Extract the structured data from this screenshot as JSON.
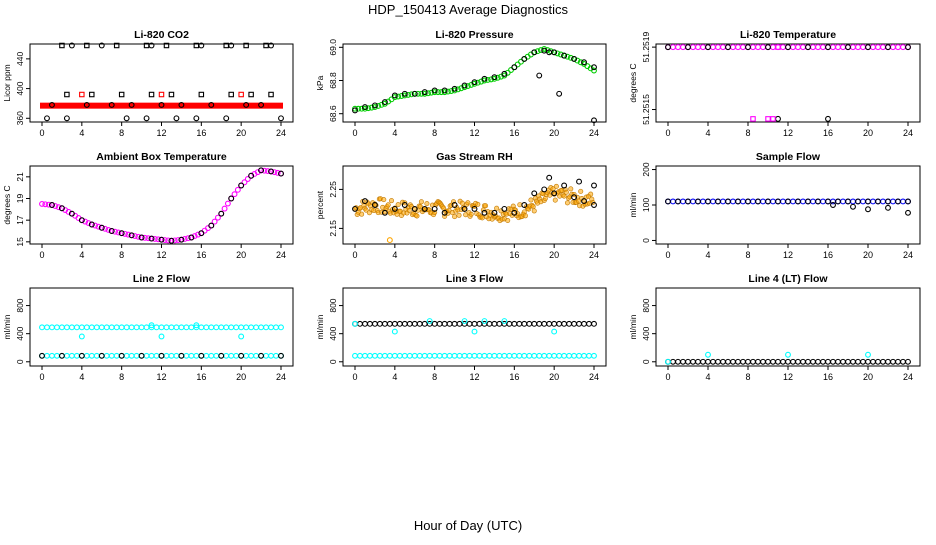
{
  "figure": {
    "title": "HDP_150413  Average Diagnostics",
    "xlabel": "Hour of Day (UTC)"
  },
  "colors": {
    "black": "#000000",
    "red": "#ff0000",
    "green": "#00cc00",
    "magenta": "#ff00ff",
    "blue": "#0000ff",
    "orange": "#ffa500",
    "cyan": "#00ffff"
  },
  "chart_data": [
    {
      "type": "scatter",
      "title": "Li-820 CO2",
      "ylabel": "Licor ppm",
      "xlim": [
        0,
        24
      ],
      "ylim": [
        355,
        460
      ],
      "xticks": [
        "0",
        "4",
        "8",
        "12",
        "16",
        "20",
        "24"
      ],
      "yticks": [
        {
          "value": 360,
          "label": "360"
        },
        {
          "value": 400,
          "label": "400"
        },
        {
          "value": 440,
          "label": "440"
        }
      ],
      "series": [
        {
          "color": "red",
          "marker": "dense-band",
          "x": [
            0,
            24
          ],
          "y": [
            377,
            377
          ]
        },
        {
          "color": "black",
          "marker": "square",
          "x": [
            2,
            2.5,
            4.5,
            5,
            7.5,
            8,
            10.5,
            11,
            12.5,
            13,
            15.5,
            16,
            18.5,
            19,
            20.5,
            21,
            22.5,
            23
          ],
          "y": [
            458,
            392,
            458,
            392,
            458,
            392,
            458,
            392,
            458,
            392,
            458,
            392,
            458,
            392,
            458,
            392,
            458,
            392
          ]
        },
        {
          "color": "black",
          "marker": "circle",
          "x": [
            0.5,
            1,
            2.5,
            3,
            4.5,
            6,
            7,
            8.5,
            9,
            10.5,
            11,
            12,
            13.5,
            14,
            15.5,
            16,
            17,
            18.5,
            19,
            20.5,
            22,
            23,
            24
          ],
          "y": [
            360,
            378,
            360,
            458,
            378,
            458,
            378,
            360,
            378,
            360,
            458,
            378,
            360,
            378,
            360,
            458,
            378,
            360,
            458,
            378,
            378,
            458,
            360
          ]
        },
        {
          "color": "red",
          "marker": "square",
          "x": [
            4,
            12,
            20
          ],
          "y": [
            392,
            392,
            392
          ]
        }
      ]
    },
    {
      "type": "scatter",
      "title": "Li-820 Pressure",
      "ylabel": "kPa",
      "xlim": [
        0,
        24
      ],
      "ylim": [
        68.55,
        69.02
      ],
      "xticks": [
        "0",
        "4",
        "8",
        "12",
        "16",
        "20",
        "24"
      ],
      "yticks": [
        {
          "value": 68.6,
          "label": "68.6"
        },
        {
          "value": 68.8,
          "label": "68.8"
        },
        {
          "value": 69.0,
          "label": "69.0"
        }
      ],
      "series": [
        {
          "color": "green",
          "marker": "circle-line",
          "x": [
            0,
            1,
            2,
            3,
            4,
            5,
            6,
            7,
            8,
            9,
            10,
            11,
            12,
            13,
            14,
            15,
            16,
            17,
            18,
            19,
            20,
            21,
            22,
            23,
            24
          ],
          "y": [
            68.63,
            68.63,
            68.64,
            68.66,
            68.7,
            68.71,
            68.72,
            68.72,
            68.73,
            68.73,
            68.74,
            68.76,
            68.78,
            68.8,
            68.81,
            68.83,
            68.88,
            68.93,
            68.97,
            68.99,
            68.97,
            68.95,
            68.93,
            68.9,
            68.86
          ]
        },
        {
          "color": "black",
          "marker": "circle",
          "x": [
            0,
            1,
            2,
            3,
            4,
            5,
            6,
            7,
            8,
            9,
            10,
            11,
            12,
            13,
            14,
            15,
            16,
            17,
            18,
            19,
            20,
            21,
            22,
            23,
            24,
            18.5,
            19.5,
            20.5,
            24
          ],
          "y": [
            68.62,
            68.64,
            68.65,
            68.67,
            68.71,
            68.72,
            68.72,
            68.73,
            68.74,
            68.74,
            68.75,
            68.77,
            68.79,
            68.81,
            68.82,
            68.84,
            68.88,
            68.93,
            68.97,
            68.98,
            68.97,
            68.95,
            68.93,
            68.91,
            68.88,
            68.83,
            68.97,
            68.72,
            68.56
          ]
        }
      ]
    },
    {
      "type": "scatter",
      "title": "Li-820 Temperature",
      "ylabel": "degrees C",
      "xlim": [
        0,
        24
      ],
      "ylim": [
        51.25142,
        51.25192
      ],
      "xticks": [
        "0",
        "4",
        "8",
        "12",
        "16",
        "20",
        "24"
      ],
      "yticks": [
        {
          "value": 51.2515,
          "label": "51.2515"
        },
        {
          "value": 51.2519,
          "label": "51.2519"
        }
      ],
      "series": [
        {
          "color": "magenta",
          "marker": "circle-line",
          "x": [
            0,
            24
          ],
          "y": [
            51.2519,
            51.2519
          ]
        },
        {
          "color": "black",
          "marker": "circle",
          "x": [
            0,
            2,
            4,
            6,
            8,
            10,
            12,
            14,
            16,
            18,
            20,
            22,
            24,
            11,
            16
          ],
          "y": [
            51.2519,
            51.2519,
            51.2519,
            51.2519,
            51.2519,
            51.2519,
            51.2519,
            51.2519,
            51.2519,
            51.2519,
            51.2519,
            51.2519,
            51.2519,
            51.25144,
            51.25144
          ]
        },
        {
          "color": "magenta",
          "marker": "square",
          "x": [
            8.5,
            10,
            10.5,
            11
          ],
          "y": [
            51.25144,
            51.25144,
            51.25144,
            51.2519
          ]
        }
      ]
    },
    {
      "type": "scatter",
      "title": "Ambient Box Temperature",
      "ylabel": "degrees C",
      "xlim": [
        0,
        24
      ],
      "ylim": [
        14.8,
        22
      ],
      "xticks": [
        "0",
        "4",
        "8",
        "12",
        "16",
        "20",
        "24"
      ],
      "yticks": [
        {
          "value": 15,
          "label": "15"
        },
        {
          "value": 17,
          "label": "17"
        },
        {
          "value": 19,
          "label": "19"
        },
        {
          "value": 21,
          "label": "21"
        }
      ],
      "series": [
        {
          "color": "magenta",
          "marker": "circle-line",
          "x": [
            0,
            1,
            2,
            3,
            4,
            5,
            6,
            7,
            8,
            9,
            10,
            11,
            12,
            13,
            14,
            15,
            16,
            17,
            18,
            19,
            20,
            21,
            22,
            23,
            24
          ],
          "y": [
            18.5,
            18.4,
            18.1,
            17.6,
            17.0,
            16.6,
            16.3,
            16.0,
            15.8,
            15.6,
            15.4,
            15.3,
            15.2,
            15.1,
            15.2,
            15.4,
            15.8,
            16.5,
            17.6,
            19.0,
            20.2,
            21.1,
            21.6,
            21.5,
            21.3
          ]
        },
        {
          "color": "black",
          "marker": "circle",
          "x": [
            1,
            2,
            3,
            4,
            5,
            6,
            7,
            8,
            9,
            10,
            11,
            12,
            13,
            14,
            15,
            16,
            17,
            18,
            19,
            20,
            21,
            22,
            23,
            24
          ],
          "y": [
            18.4,
            18.1,
            17.6,
            17.0,
            16.6,
            16.3,
            16.0,
            15.8,
            15.6,
            15.4,
            15.3,
            15.2,
            15.1,
            15.2,
            15.4,
            15.8,
            16.5,
            17.6,
            19.0,
            20.2,
            21.1,
            21.6,
            21.5,
            21.3
          ]
        }
      ]
    },
    {
      "type": "scatter",
      "title": "Gas Stream RH",
      "ylabel": "percent",
      "xlim": [
        0,
        24
      ],
      "ylim": [
        2.11,
        2.31
      ],
      "xticks": [
        "0",
        "4",
        "8",
        "12",
        "16",
        "20",
        "24"
      ],
      "yticks": [
        {
          "value": 2.15,
          "label": "2.15"
        },
        {
          "value": 2.25,
          "label": "2.25"
        }
      ],
      "series": [
        {
          "color": "orange",
          "marker": "noisy-band",
          "x": [
            0,
            2,
            4,
            6,
            8,
            10,
            12,
            14,
            16,
            18,
            20,
            22,
            24
          ],
          "y": [
            2.2,
            2.21,
            2.2,
            2.2,
            2.2,
            2.2,
            2.2,
            2.19,
            2.19,
            2.21,
            2.24,
            2.23,
            2.22
          ],
          "spread": 0.02
        },
        {
          "color": "black",
          "marker": "circle",
          "x": [
            0,
            1,
            2,
            3,
            4,
            5,
            6,
            7,
            8,
            9,
            10,
            11,
            12,
            13,
            14,
            15,
            16,
            17,
            18,
            19,
            20,
            21,
            22,
            23,
            24,
            19.5,
            22.5,
            24
          ],
          "y": [
            2.2,
            2.22,
            2.21,
            2.19,
            2.2,
            2.21,
            2.2,
            2.2,
            2.2,
            2.19,
            2.21,
            2.2,
            2.2,
            2.19,
            2.19,
            2.2,
            2.19,
            2.21,
            2.24,
            2.25,
            2.24,
            2.26,
            2.23,
            2.22,
            2.21,
            2.28,
            2.27,
            2.26
          ]
        },
        {
          "color": "orange",
          "marker": "circle",
          "x": [
            3.5
          ],
          "y": [
            2.12
          ]
        }
      ]
    },
    {
      "type": "scatter",
      "title": "Sample Flow",
      "ylabel": "ml/min",
      "xlim": [
        0,
        24
      ],
      "ylim": [
        -10,
        210
      ],
      "xticks": [
        "0",
        "4",
        "8",
        "12",
        "16",
        "20",
        "24"
      ],
      "yticks": [
        {
          "value": 0,
          "label": "0"
        },
        {
          "value": 100,
          "label": "100"
        },
        {
          "value": 200,
          "label": "200"
        }
      ],
      "series": [
        {
          "color": "blue",
          "marker": "circle-line",
          "x": [
            0,
            24
          ],
          "y": [
            110,
            110
          ]
        },
        {
          "color": "black",
          "marker": "circle",
          "x": [
            0,
            1,
            2,
            3,
            4,
            5,
            6,
            7,
            8,
            9,
            10,
            11,
            12,
            13,
            14,
            15,
            16,
            17,
            18,
            19,
            20,
            21,
            22,
            23,
            24,
            16.5,
            18.5,
            20,
            22,
            24
          ],
          "y": [
            110,
            110,
            110,
            110,
            110,
            110,
            110,
            110,
            110,
            110,
            110,
            110,
            110,
            110,
            110,
            110,
            110,
            110,
            110,
            110,
            110,
            110,
            110,
            110,
            110,
            100,
            95,
            88,
            92,
            78
          ]
        }
      ]
    },
    {
      "type": "scatter",
      "title": "Line 2 Flow",
      "ylabel": "ml/min",
      "xlim": [
        0,
        24
      ],
      "ylim": [
        -60,
        1050
      ],
      "xticks": [
        "0",
        "4",
        "8",
        "12",
        "16",
        "20",
        "24"
      ],
      "yticks": [
        {
          "value": 0,
          "label": "0"
        },
        {
          "value": 400,
          "label": "400"
        },
        {
          "value": 800,
          "label": "800"
        }
      ],
      "series": [
        {
          "color": "cyan",
          "marker": "circle-line",
          "x": [
            0,
            24
          ],
          "y": [
            490,
            490
          ]
        },
        {
          "color": "cyan",
          "marker": "circle-line",
          "x": [
            0,
            24
          ],
          "y": [
            85,
            85
          ]
        },
        {
          "color": "black",
          "marker": "circle",
          "x": [
            0,
            2,
            4,
            6,
            8,
            10,
            12,
            14,
            16,
            18,
            20,
            22,
            24
          ],
          "y": [
            85,
            85,
            85,
            85,
            85,
            85,
            85,
            85,
            85,
            85,
            85,
            85,
            85
          ]
        },
        {
          "color": "cyan",
          "marker": "circle",
          "x": [
            4,
            11,
            12,
            15.5,
            20
          ],
          "y": [
            360,
            520,
            360,
            520,
            360
          ]
        }
      ]
    },
    {
      "type": "scatter",
      "title": "Line 3 Flow",
      "ylabel": "ml/min",
      "xlim": [
        0,
        24
      ],
      "ylim": [
        -60,
        1050
      ],
      "xticks": [
        "0",
        "4",
        "8",
        "12",
        "16",
        "20",
        "24"
      ],
      "yticks": [
        {
          "value": 0,
          "label": "0"
        },
        {
          "value": 400,
          "label": "400"
        },
        {
          "value": 800,
          "label": "800"
        }
      ],
      "series": [
        {
          "color": "cyan",
          "marker": "circle-line",
          "x": [
            0,
            24
          ],
          "y": [
            85,
            85
          ]
        },
        {
          "color": "black",
          "marker": "circle-line",
          "x": [
            0,
            24
          ],
          "y": [
            540,
            540
          ]
        },
        {
          "color": "cyan",
          "marker": "circle",
          "x": [
            0,
            4,
            7.5,
            11,
            12,
            13,
            15,
            20
          ],
          "y": [
            540,
            430,
            580,
            580,
            430,
            580,
            580,
            430
          ]
        }
      ]
    },
    {
      "type": "scatter",
      "title": "Line 4 (LT) Flow",
      "ylabel": "ml/min",
      "xlim": [
        0,
        24
      ],
      "ylim": [
        -60,
        1050
      ],
      "xticks": [
        "0",
        "4",
        "8",
        "12",
        "16",
        "20",
        "24"
      ],
      "yticks": [
        {
          "value": 0,
          "label": "0"
        },
        {
          "value": 400,
          "label": "400"
        },
        {
          "value": 800,
          "label": "800"
        }
      ],
      "series": [
        {
          "color": "black",
          "marker": "circle-line",
          "x": [
            0,
            24
          ],
          "y": [
            0,
            0
          ]
        },
        {
          "color": "cyan",
          "marker": "circle",
          "x": [
            0,
            4,
            12,
            20
          ],
          "y": [
            0,
            100,
            100,
            100
          ]
        }
      ]
    }
  ]
}
